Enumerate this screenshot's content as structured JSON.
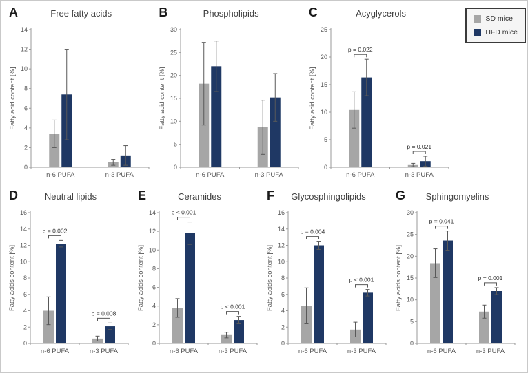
{
  "legend": {
    "items": [
      {
        "label": "SD mice",
        "color": "#a6a6a6"
      },
      {
        "label": "HFD mice",
        "color": "#1f3864"
      }
    ]
  },
  "chart_data": [
    {
      "type": "bar",
      "panel": "A",
      "title": "Free fatty acids",
      "ylabel": "Fatty acid content [%]",
      "ylim": [
        0,
        14
      ],
      "ytick": 2,
      "categories": [
        "n-6 PUFA",
        "n-3 PUFA"
      ],
      "series": [
        {
          "name": "SD mice",
          "color": "#a6a6a6",
          "values": [
            3.4,
            0.5
          ],
          "errors": [
            1.4,
            0.3
          ]
        },
        {
          "name": "HFD mice",
          "color": "#1f3864",
          "values": [
            7.4,
            1.2
          ],
          "errors": [
            4.6,
            1.0
          ]
        }
      ],
      "pvalues": [
        null,
        null
      ]
    },
    {
      "type": "bar",
      "panel": "B",
      "title": "Phospholipids",
      "ylabel": "Fatty acid content [%]",
      "ylim": [
        0,
        30
      ],
      "ytick": 5,
      "categories": [
        "n-6 PUFA",
        "n-3 PUFA"
      ],
      "series": [
        {
          "name": "SD mice",
          "color": "#a6a6a6",
          "values": [
            18.2,
            8.7
          ],
          "errors": [
            9.0,
            5.9
          ]
        },
        {
          "name": "HFD mice",
          "color": "#1f3864",
          "values": [
            22.0,
            15.2
          ],
          "errors": [
            5.5,
            5.2
          ]
        }
      ],
      "pvalues": [
        null,
        null
      ]
    },
    {
      "type": "bar",
      "panel": "C",
      "title": "Acyglycerols",
      "ylabel": "Fatty acid content [%]",
      "ylim": [
        0,
        25
      ],
      "ytick": 5,
      "categories": [
        "n-6 PUFA",
        "n-3 PUFA"
      ],
      "series": [
        {
          "name": "SD mice",
          "color": "#a6a6a6",
          "values": [
            10.4,
            0.4
          ],
          "errors": [
            3.3,
            0.3
          ]
        },
        {
          "name": "HFD mice",
          "color": "#1f3864",
          "values": [
            16.3,
            1.1
          ],
          "errors": [
            3.3,
            0.9
          ]
        }
      ],
      "pvalues": [
        "p = 0.022",
        "p = 0.021"
      ]
    },
    {
      "type": "bar",
      "panel": "D",
      "title": "Neutral lipids",
      "ylabel": "Fatty acids content [%]",
      "ylim": [
        0,
        16
      ],
      "ytick": 2,
      "categories": [
        "n-6 PUFA",
        "n-3 PUFA"
      ],
      "series": [
        {
          "name": "SD mice",
          "color": "#a6a6a6",
          "values": [
            4.0,
            0.6
          ],
          "errors": [
            1.7,
            0.3
          ]
        },
        {
          "name": "HFD mice",
          "color": "#1f3864",
          "values": [
            12.2,
            2.1
          ],
          "errors": [
            0.4,
            0.4
          ]
        }
      ],
      "pvalues": [
        "p = 0.002",
        "p = 0.008"
      ]
    },
    {
      "type": "bar",
      "panel": "E",
      "title": "Ceramides",
      "ylabel": "Fatty acids content [%]",
      "ylim": [
        0,
        14
      ],
      "ytick": 2,
      "categories": [
        "n-6 PUFA",
        "n-3 PUFA"
      ],
      "series": [
        {
          "name": "SD mice",
          "color": "#a6a6a6",
          "values": [
            3.8,
            0.9
          ],
          "errors": [
            1.0,
            0.3
          ]
        },
        {
          "name": "HFD mice",
          "color": "#1f3864",
          "values": [
            11.8,
            2.5
          ],
          "errors": [
            1.2,
            0.4
          ]
        }
      ],
      "pvalues": [
        "p < 0.001",
        "p < 0.001"
      ]
    },
    {
      "type": "bar",
      "panel": "F",
      "title": "Glycosphingolipids",
      "ylabel": "Fatty acids content [%]",
      "ylim": [
        0,
        16
      ],
      "ytick": 2,
      "categories": [
        "n-6 PUFA",
        "n-3 PUFA"
      ],
      "series": [
        {
          "name": "SD mice",
          "color": "#a6a6a6",
          "values": [
            4.6,
            1.7
          ],
          "errors": [
            2.2,
            0.9
          ]
        },
        {
          "name": "HFD mice",
          "color": "#1f3864",
          "values": [
            12.0,
            6.2
          ],
          "errors": [
            0.5,
            0.4
          ]
        }
      ],
      "pvalues": [
        "p = 0.004",
        "p < 0.001"
      ]
    },
    {
      "type": "bar",
      "panel": "G",
      "title": "Sphingomyelins",
      "ylabel": "Fatty acids content [%]",
      "ylim": [
        0,
        30
      ],
      "ytick": 5,
      "categories": [
        "n-6 PUFA",
        "n-3 PUFA"
      ],
      "series": [
        {
          "name": "SD mice",
          "color": "#a6a6a6",
          "values": [
            18.4,
            7.3
          ],
          "errors": [
            3.3,
            1.5
          ]
        },
        {
          "name": "HFD mice",
          "color": "#1f3864",
          "values": [
            23.6,
            12.0
          ],
          "errors": [
            2.2,
            0.8
          ]
        }
      ],
      "pvalues": [
        "p = 0.041",
        "p = 0.001"
      ]
    }
  ]
}
